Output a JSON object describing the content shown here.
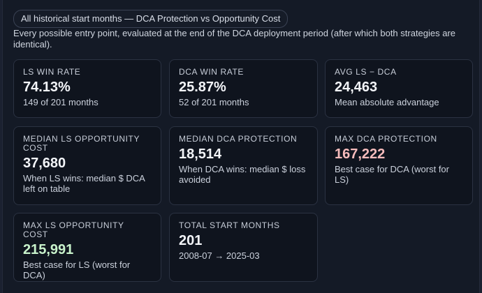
{
  "header": {
    "pill_label": "All historical start months — DCA Protection vs Opportunity Cost",
    "description": "Every possible entry point, evaluated at the end of the DCA deployment period (after which both strategies are identical)."
  },
  "cards": [
    {
      "label": "LS WIN RATE",
      "value": "74.13%",
      "sub": "149 of 201 months",
      "value_color": "#f3f5f9"
    },
    {
      "label": "DCA WIN RATE",
      "value": "25.87%",
      "sub": "52 of 201 months",
      "value_color": "#f3f5f9"
    },
    {
      "label": "AVG LS − DCA",
      "value": "24,463",
      "sub": "Mean absolute advantage",
      "value_color": "#f3f5f9"
    },
    {
      "label": "MEDIAN LS OPPORTUNITY COST",
      "value": "37,680",
      "sub": "When LS wins: median $ DCA left on table",
      "value_color": "#f3f5f9"
    },
    {
      "label": "MEDIAN DCA PROTECTION",
      "value": "18,514",
      "sub": "When DCA wins: median $ loss avoided",
      "value_color": "#f3f5f9"
    },
    {
      "label": "MAX DCA PROTECTION",
      "value": "167,222",
      "sub": "Best case for DCA (worst for LS)",
      "value_color": "#f7bcbc"
    },
    {
      "label": "MAX LS OPPORTUNITY COST",
      "value": "215,991",
      "sub": "Best case for LS (worst for DCA)",
      "value_color": "#c8f2cb"
    },
    {
      "label": "TOTAL START MONTHS",
      "value": "201",
      "sub": "2008-07 → 2025-03",
      "value_color": "#f3f5f9"
    }
  ]
}
